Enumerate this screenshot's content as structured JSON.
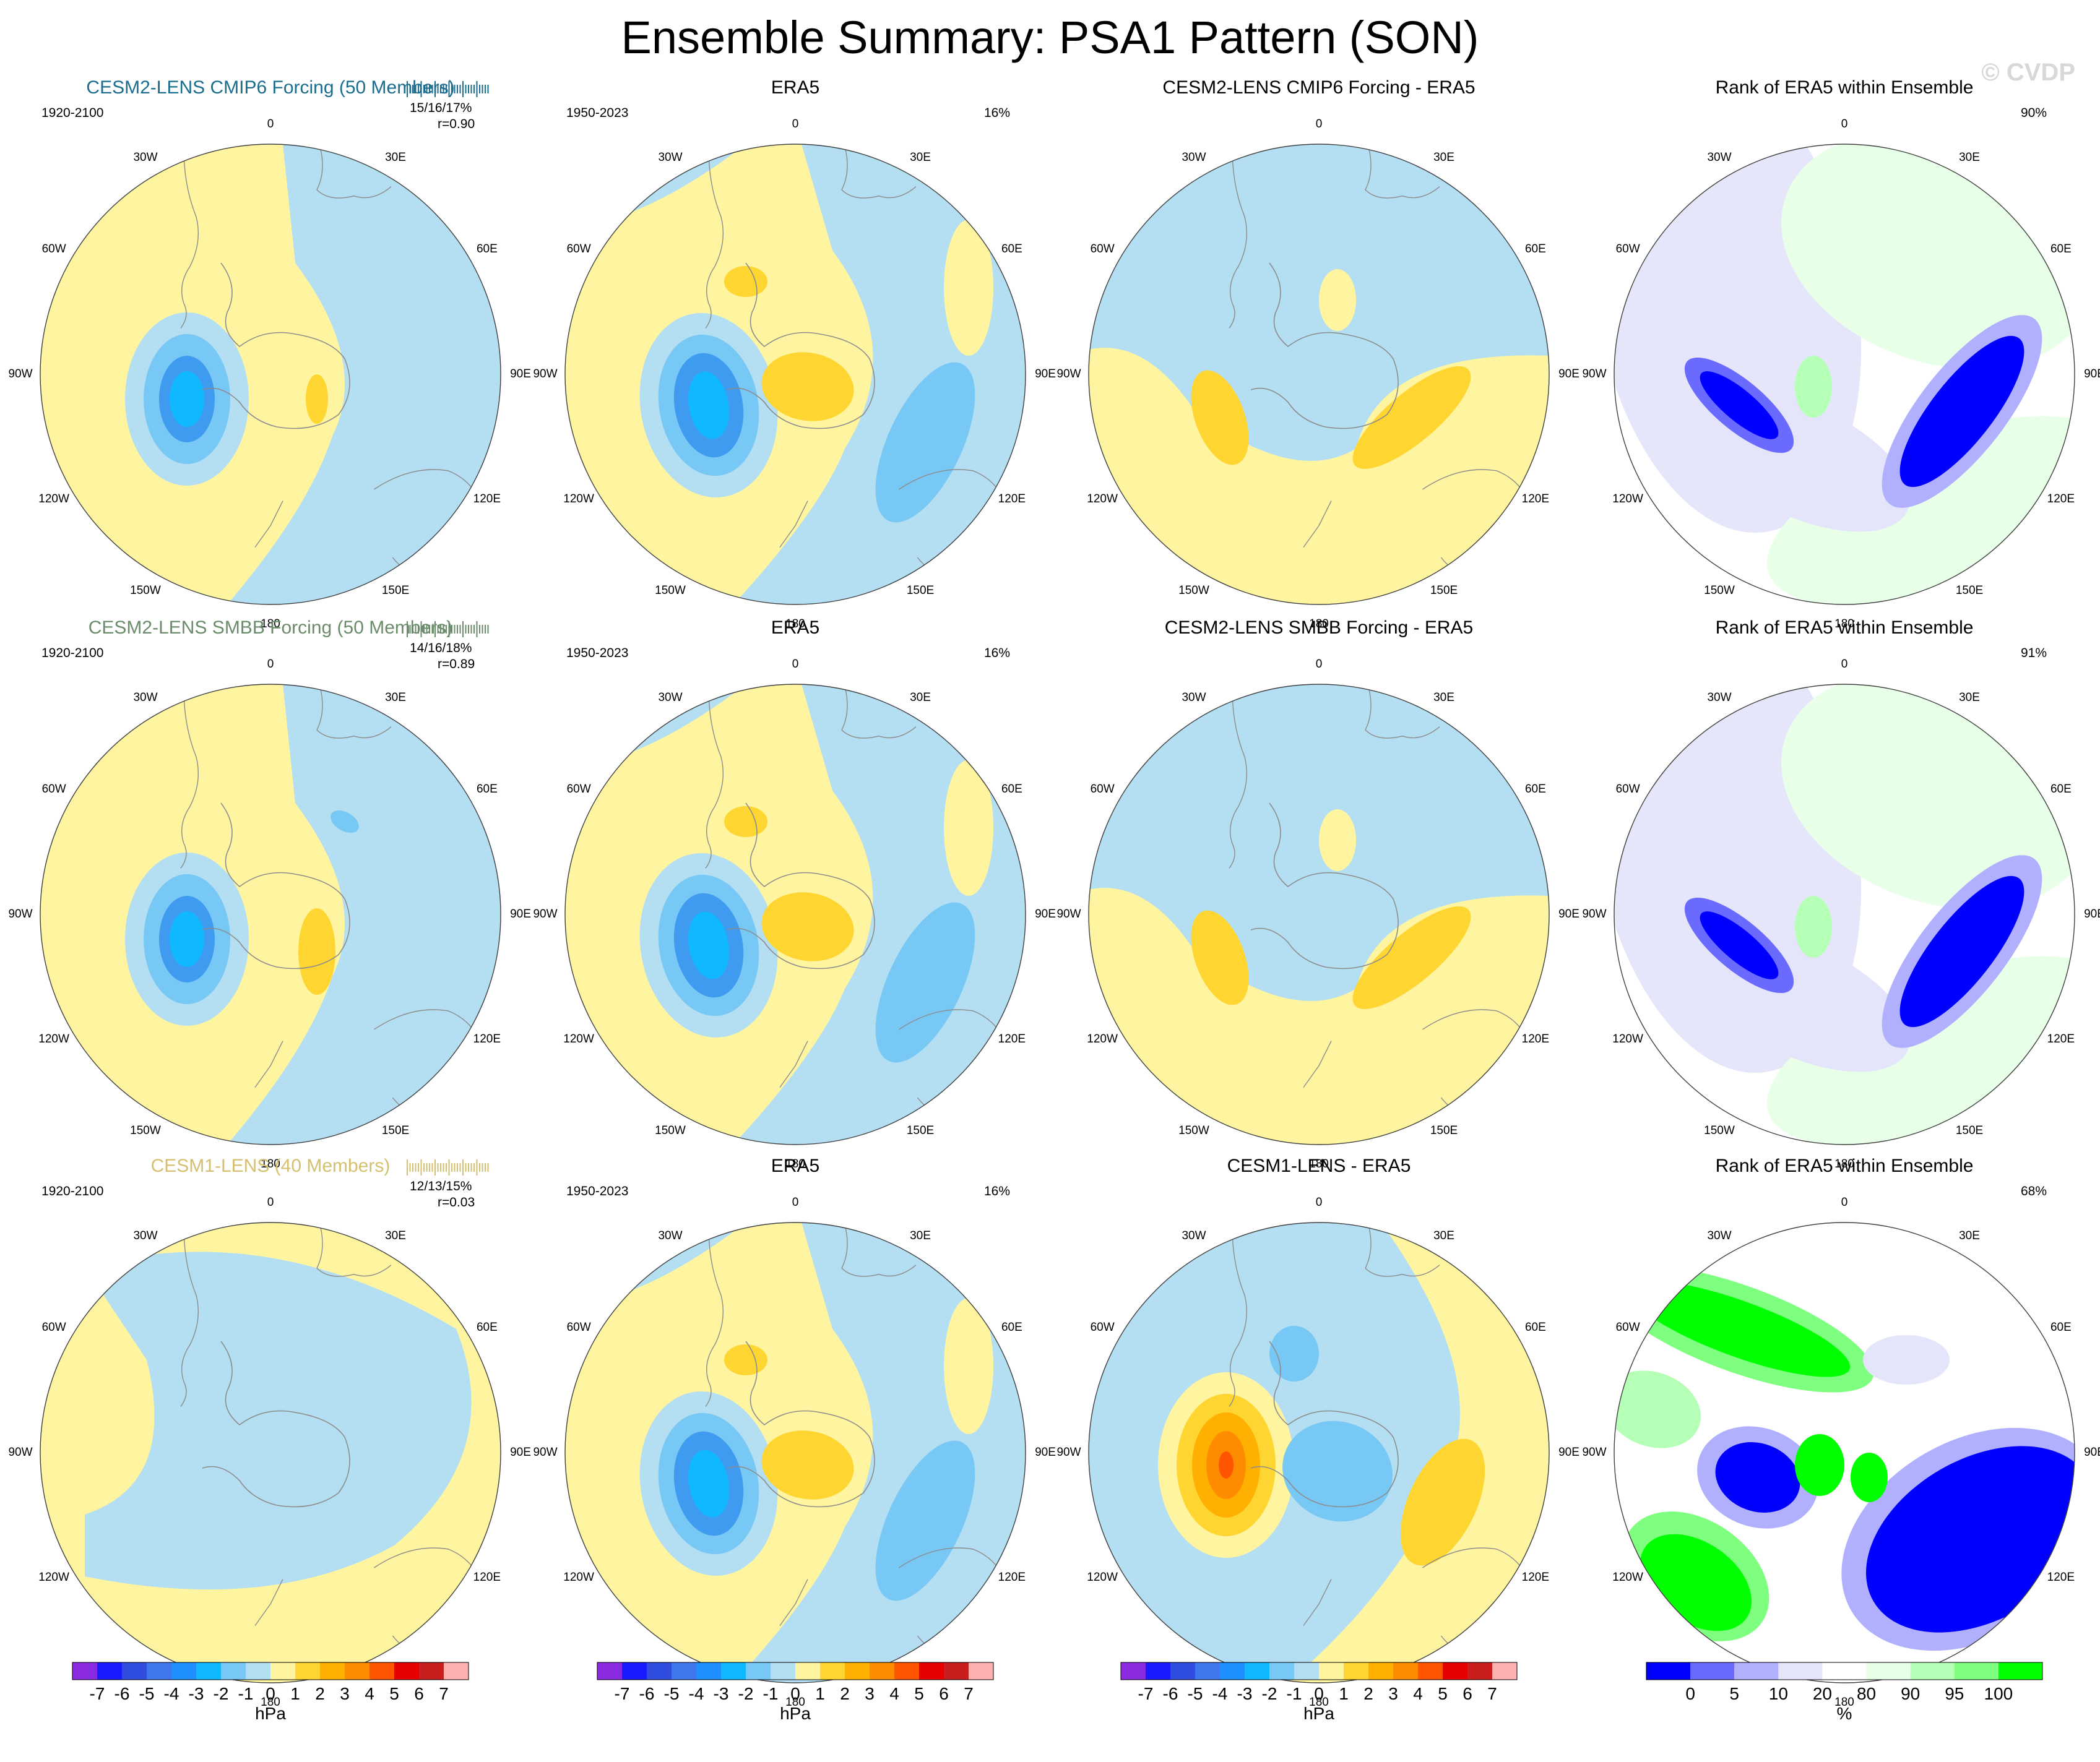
{
  "title": "Ensemble Summary: PSA1 Pattern (SON)",
  "watermark": "© CVDP",
  "colors": {
    "model_title_1": "#1a6d8e",
    "model_title_2": "#6b8c6b",
    "model_title_3": "#d4c070",
    "land_outline": "#8c8c8c"
  },
  "longitude_labels": [
    "0",
    "30E",
    "60E",
    "90E",
    "120E",
    "150E",
    "180",
    "150W",
    "120W",
    "90W",
    "60W",
    "30W"
  ],
  "rows": [
    {
      "model": {
        "title": "CESM2-LENS CMIP6 Forcing (50 Members)",
        "period": "1920-2100",
        "stats": "15/16/17%",
        "corr": "r=0.90"
      },
      "obs": {
        "title": "ERA5",
        "period": "1950-2023",
        "pct": "16%"
      },
      "diff": {
        "title": "CESM2-LENS CMIP6 Forcing - ERA5"
      },
      "rank": {
        "title": "Rank of ERA5 within Ensemble",
        "pct": "90%"
      }
    },
    {
      "model": {
        "title": "CESM2-LENS SMBB Forcing (50 Members)",
        "period": "1920-2100",
        "stats": "14/16/18%",
        "corr": "r=0.89"
      },
      "obs": {
        "title": "ERA5",
        "period": "1950-2023",
        "pct": "16%"
      },
      "diff": {
        "title": "CESM2-LENS SMBB Forcing - ERA5"
      },
      "rank": {
        "title": "Rank of ERA5 within Ensemble",
        "pct": "91%"
      }
    },
    {
      "model": {
        "title": "CESM1-LENS (40 Members)",
        "period": "1920-2100",
        "stats": "12/13/15%",
        "corr": "r=0.03"
      },
      "obs": {
        "title": "ERA5",
        "period": "1950-2023",
        "pct": "16%"
      },
      "diff": {
        "title": "CESM1-LENS - ERA5"
      },
      "rank": {
        "title": "Rank of ERA5 within Ensemble",
        "pct": "68%"
      }
    }
  ],
  "colorbar_hpa": {
    "unit": "hPa",
    "labels": [
      "-7",
      "-6",
      "-5",
      "-4",
      "-3",
      "-2",
      "-1",
      "0",
      "1",
      "2",
      "3",
      "4",
      "5",
      "6",
      "7"
    ],
    "colors": [
      "#8a2be2",
      "#1a1aff",
      "#2f4ee0",
      "#3f77ee",
      "#1e8fff",
      "#10b8ff",
      "#78c8f5",
      "#b4def2",
      "#fff5a0",
      "#ffd531",
      "#ffb000",
      "#ff8c00",
      "#ff5500",
      "#e60000",
      "#c81e1e",
      "#ffb0b0"
    ]
  },
  "colorbar_pct": {
    "unit": "%",
    "labels": [
      "0",
      "5",
      "10",
      "20",
      "80",
      "90",
      "95",
      "100"
    ],
    "colors": [
      "#0000ff",
      "#6a6aff",
      "#b0b0ff",
      "#e4e4fa",
      "#ffffff",
      "#e8ffe8",
      "#b6ffb6",
      "#7fff7f",
      "#00ff00"
    ]
  }
}
